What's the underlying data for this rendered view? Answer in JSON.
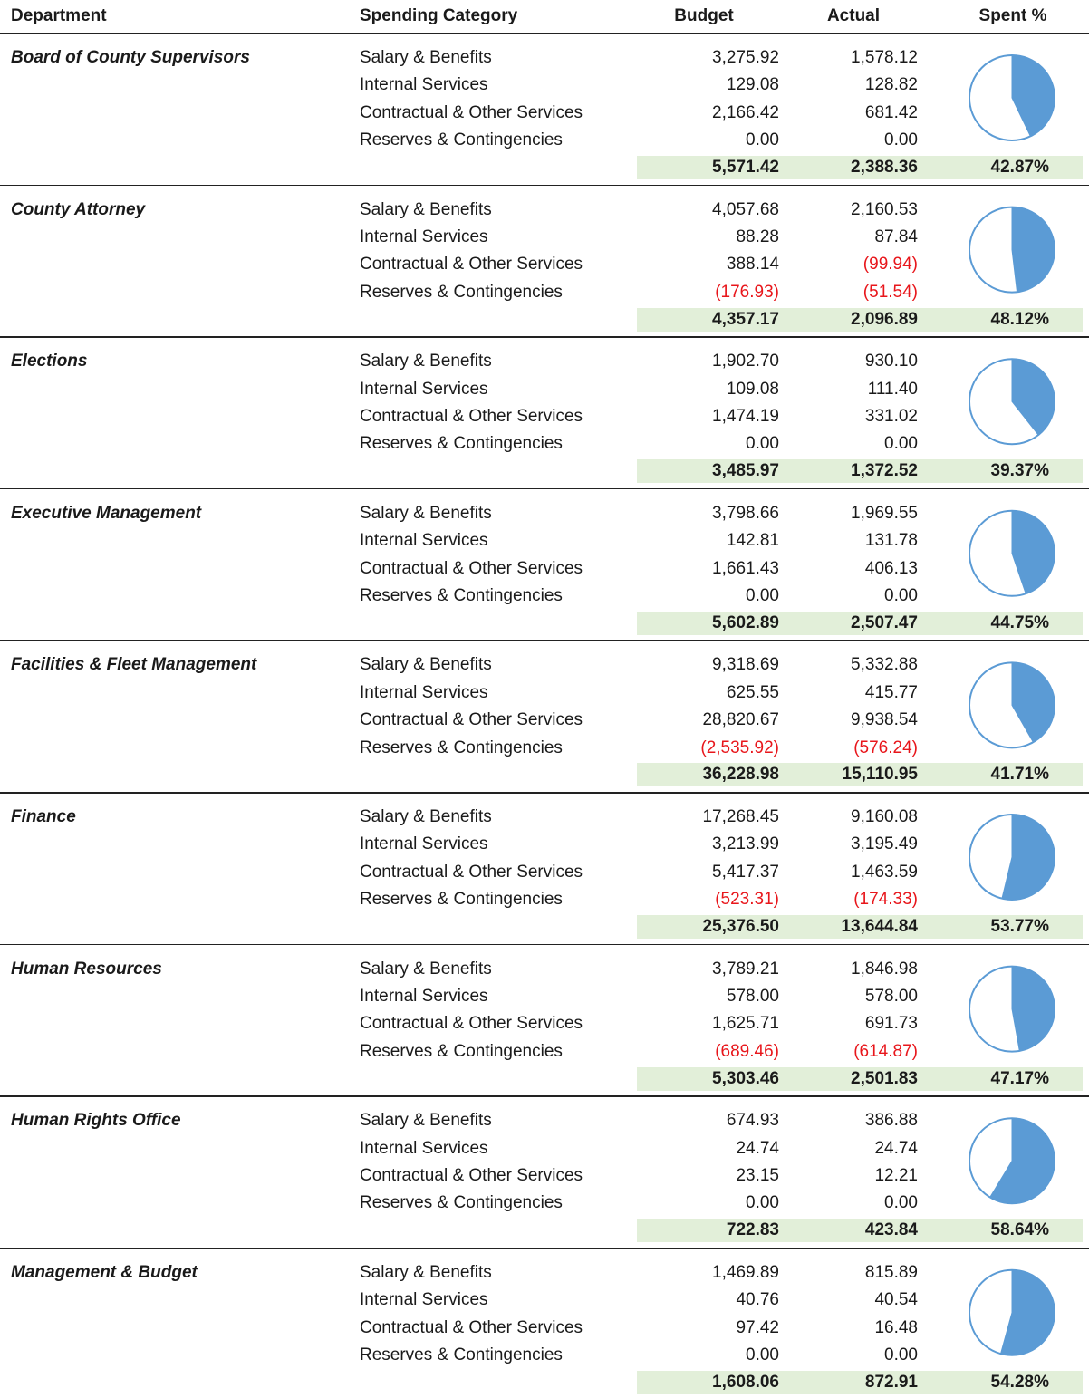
{
  "header": [
    "Department",
    "Spending Category",
    "Budget",
    "Actual",
    "Spent %"
  ],
  "departments": [
    {
      "name": "Board of County Supervisors",
      "rows": [
        {
          "category": "Salary & Benefits",
          "budget": "3,275.92",
          "actual": "1,578.12"
        },
        {
          "category": "Internal Services",
          "budget": "129.08",
          "actual": "128.82"
        },
        {
          "category": "Contractual & Other Services",
          "budget": "2,166.42",
          "actual": "681.42"
        },
        {
          "category": "Reserves & Contingencies",
          "budget": "0.00",
          "actual": "0.00"
        }
      ],
      "total": {
        "budget": "5,571.42",
        "actual": "2,388.36"
      },
      "spent": 42.87,
      "spent_label": "42.87%"
    },
    {
      "name": "County Attorney",
      "rows": [
        {
          "category": "Salary & Benefits",
          "budget": "4,057.68",
          "actual": "2,160.53"
        },
        {
          "category": "Internal Services",
          "budget": "88.28",
          "actual": "87.84"
        },
        {
          "category": "Contractual & Other Services",
          "budget": "388.14",
          "actual": "(99.94)"
        },
        {
          "category": "Reserves & Contingencies",
          "budget": "(176.93)",
          "actual": "(51.54)"
        }
      ],
      "total": {
        "budget": "4,357.17",
        "actual": "2,096.89"
      },
      "spent": 48.12,
      "spent_label": "48.12%"
    },
    {
      "name": "Elections",
      "rows": [
        {
          "category": "Salary & Benefits",
          "budget": "1,902.70",
          "actual": "930.10"
        },
        {
          "category": "Internal Services",
          "budget": "109.08",
          "actual": "111.40"
        },
        {
          "category": "Contractual & Other Services",
          "budget": "1,474.19",
          "actual": "331.02"
        },
        {
          "category": "Reserves & Contingencies",
          "budget": "0.00",
          "actual": "0.00"
        }
      ],
      "total": {
        "budget": "3,485.97",
        "actual": "1,372.52"
      },
      "spent": 39.37,
      "spent_label": "39.37%"
    },
    {
      "name": "Executive Management",
      "rows": [
        {
          "category": "Salary & Benefits",
          "budget": "3,798.66",
          "actual": "1,969.55"
        },
        {
          "category": "Internal Services",
          "budget": "142.81",
          "actual": "131.78"
        },
        {
          "category": "Contractual & Other Services",
          "budget": "1,661.43",
          "actual": "406.13"
        },
        {
          "category": "Reserves & Contingencies",
          "budget": "0.00",
          "actual": "0.00"
        }
      ],
      "total": {
        "budget": "5,602.89",
        "actual": "2,507.47"
      },
      "spent": 44.75,
      "spent_label": "44.75%"
    },
    {
      "name": "Facilities & Fleet Management",
      "rows": [
        {
          "category": "Salary & Benefits",
          "budget": "9,318.69",
          "actual": "5,332.88"
        },
        {
          "category": "Internal Services",
          "budget": "625.55",
          "actual": "415.77"
        },
        {
          "category": "Contractual & Other Services",
          "budget": "28,820.67",
          "actual": "9,938.54"
        },
        {
          "category": "Reserves & Contingencies",
          "budget": "(2,535.92)",
          "actual": "(576.24)"
        }
      ],
      "total": {
        "budget": "36,228.98",
        "actual": "15,110.95"
      },
      "spent": 41.71,
      "spent_label": "41.71%"
    },
    {
      "name": "Finance",
      "rows": [
        {
          "category": "Salary & Benefits",
          "budget": "17,268.45",
          "actual": "9,160.08"
        },
        {
          "category": "Internal Services",
          "budget": "3,213.99",
          "actual": "3,195.49"
        },
        {
          "category": "Contractual & Other Services",
          "budget": "5,417.37",
          "actual": "1,463.59"
        },
        {
          "category": "Reserves & Contingencies",
          "budget": "(523.31)",
          "actual": "(174.33)"
        }
      ],
      "total": {
        "budget": "25,376.50",
        "actual": "13,644.84"
      },
      "spent": 53.77,
      "spent_label": "53.77%"
    },
    {
      "name": "Human Resources",
      "rows": [
        {
          "category": "Salary & Benefits",
          "budget": "3,789.21",
          "actual": "1,846.98"
        },
        {
          "category": "Internal Services",
          "budget": "578.00",
          "actual": "578.00"
        },
        {
          "category": "Contractual & Other Services",
          "budget": "1,625.71",
          "actual": "691.73"
        },
        {
          "category": "Reserves & Contingencies",
          "budget": "(689.46)",
          "actual": "(614.87)"
        }
      ],
      "total": {
        "budget": "5,303.46",
        "actual": "2,501.83"
      },
      "spent": 47.17,
      "spent_label": "47.17%"
    },
    {
      "name": "Human Rights Office",
      "rows": [
        {
          "category": "Salary & Benefits",
          "budget": "674.93",
          "actual": "386.88"
        },
        {
          "category": "Internal Services",
          "budget": "24.74",
          "actual": "24.74"
        },
        {
          "category": "Contractual & Other Services",
          "budget": "23.15",
          "actual": "12.21"
        },
        {
          "category": "Reserves & Contingencies",
          "budget": "0.00",
          "actual": "0.00"
        }
      ],
      "total": {
        "budget": "722.83",
        "actual": "423.84"
      },
      "spent": 58.64,
      "spent_label": "58.64%"
    },
    {
      "name": "Management & Budget",
      "rows": [
        {
          "category": "Salary & Benefits",
          "budget": "1,469.89",
          "actual": "815.89"
        },
        {
          "category": "Internal Services",
          "budget": "40.76",
          "actual": "40.54"
        },
        {
          "category": "Contractual & Other Services",
          "budget": "97.42",
          "actual": "16.48"
        },
        {
          "category": "Reserves & Contingencies",
          "budget": "0.00",
          "actual": "0.00"
        }
      ],
      "total": {
        "budget": "1,608.06",
        "actual": "872.91"
      },
      "spent": 54.28,
      "spent_label": "54.28%"
    }
  ]
}
